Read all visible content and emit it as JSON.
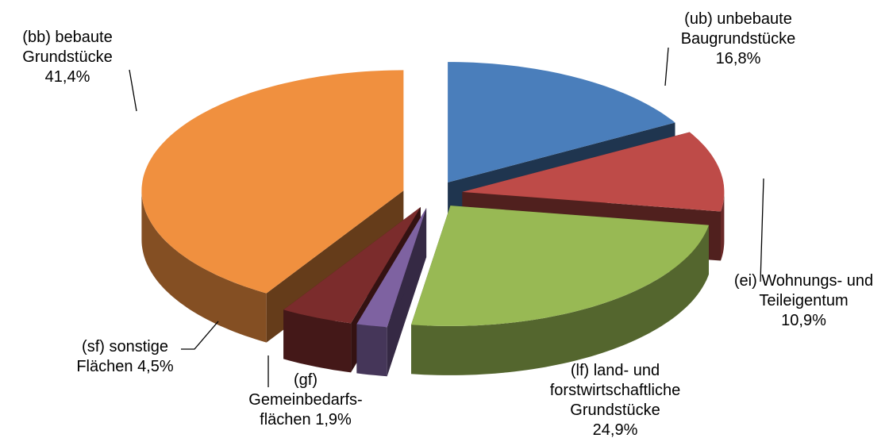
{
  "chart_data": {
    "type": "pie3d",
    "categories": [
      "(ub) unbebaute Baugrundstücke",
      "(ei) Wohnungs- und Teileigentum",
      "(lf) land- und forstwirtschaftliche Grundstücke",
      "(gf) Gemeinbedarfs-flächen",
      "(sf) sonstige Flächen",
      "(bb) bebaute Grundstücke"
    ],
    "values": [
      16.8,
      10.9,
      24.9,
      1.9,
      4.5,
      41.4
    ],
    "value_labels": [
      "16,8%",
      "10,9%",
      "24,9%",
      "1,9%",
      "4,5%",
      "41,4%"
    ],
    "colors": [
      "#4a7ebb",
      "#be4b48",
      "#98b954",
      "#7e62a1",
      "#7b2c2c",
      "#f0903f"
    ]
  }
}
